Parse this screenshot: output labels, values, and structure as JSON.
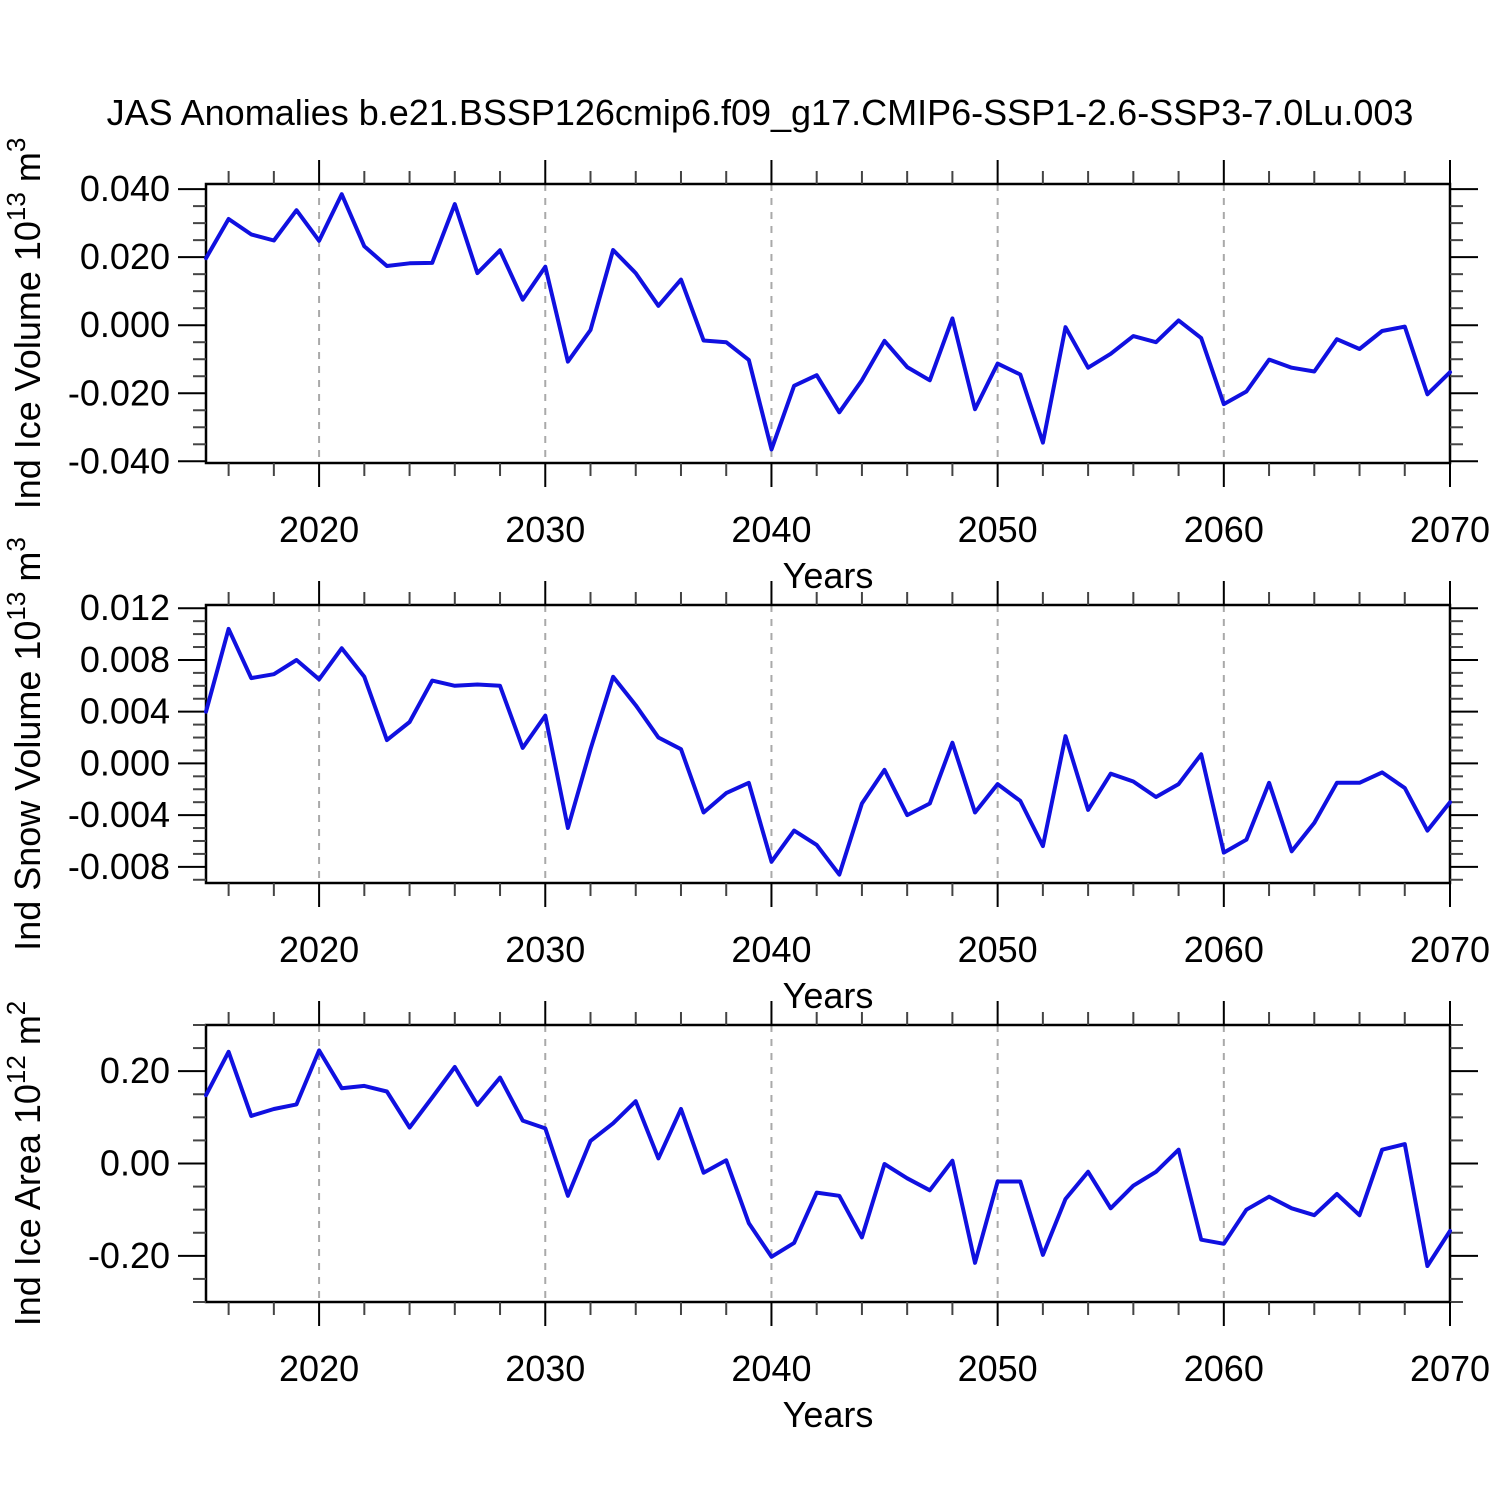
{
  "title": "JAS Anomalies b.e21.BSSP126cmip6.f09_g17.CMIP6-SSP1-2.6-SSP3-7.0Lu.003",
  "colors": {
    "line": "#1010E0",
    "axis": "#000000",
    "gridline": "#A9A9A9",
    "background": "#FFFFFF"
  },
  "chart_data": {
    "type": "line",
    "xlabel": "Years",
    "legend": "none",
    "grid": "vertical-dashed-at-decades",
    "gridline_years": [
      2020,
      2030,
      2040,
      2050,
      2060
    ],
    "x_major_ticks": [
      {
        "v": 2020,
        "label": "2020"
      },
      {
        "v": 2030,
        "label": "2030"
      },
      {
        "v": 2040,
        "label": "2040"
      },
      {
        "v": 2050,
        "label": "2050"
      },
      {
        "v": 2060,
        "label": "2060"
      },
      {
        "v": 2070,
        "label": "2070"
      }
    ],
    "x_minor_step": 2,
    "xlim": [
      2015,
      2070
    ],
    "years": [
      2015,
      2016,
      2017,
      2018,
      2019,
      2020,
      2021,
      2022,
      2023,
      2024,
      2025,
      2026,
      2027,
      2028,
      2029,
      2030,
      2031,
      2032,
      2033,
      2034,
      2035,
      2036,
      2037,
      2038,
      2039,
      2040,
      2041,
      2042,
      2043,
      2044,
      2045,
      2046,
      2047,
      2048,
      2049,
      2050,
      2051,
      2052,
      2053,
      2054,
      2055,
      2056,
      2057,
      2058,
      2059,
      2060,
      2061,
      2062,
      2063,
      2064,
      2065,
      2066,
      2067,
      2068,
      2069,
      2070
    ],
    "panels": [
      {
        "id": "ind-ice-volume",
        "ylabel_text": "Ind Ice Volume 10^13 m^3",
        "ylabel_parts": [
          {
            "t": "Ind Ice Volume 10",
            "sup": false
          },
          {
            "t": "13",
            "sup": true
          },
          {
            "t": " m",
            "sup": false
          },
          {
            "t": "3",
            "sup": true
          }
        ],
        "ylim": [
          -0.0405,
          0.0415
        ],
        "y_major_ticks": [
          {
            "v": 0.04,
            "label": "0.040"
          },
          {
            "v": 0.02,
            "label": "0.020"
          },
          {
            "v": 0.0,
            "label": "0.000"
          },
          {
            "v": -0.02,
            "label": "-0.020"
          },
          {
            "v": -0.04,
            "label": "-0.040"
          }
        ],
        "y_minor_step": 0.005,
        "values": [
          0.0197,
          0.0312,
          0.0267,
          0.0249,
          0.0338,
          0.0248,
          0.0385,
          0.0232,
          0.0174,
          0.0182,
          0.0183,
          0.0356,
          0.0153,
          0.022,
          0.0075,
          0.0172,
          -0.0107,
          -0.0014,
          0.0221,
          0.0153,
          0.0057,
          0.0134,
          -0.0045,
          -0.005,
          -0.0102,
          -0.0365,
          -0.0178,
          -0.0147,
          -0.0256,
          -0.0162,
          -0.0046,
          -0.0123,
          -0.0162,
          0.002,
          -0.0247,
          -0.0113,
          -0.0145,
          -0.0345,
          -0.0006,
          -0.0125,
          -0.0084,
          -0.0032,
          -0.005,
          0.0014,
          -0.0038,
          -0.0232,
          -0.0195,
          -0.0101,
          -0.0125,
          -0.0136,
          -0.0041,
          -0.007,
          -0.0017,
          -0.0004,
          -0.0203,
          -0.0138
        ]
      },
      {
        "id": "ind-snow-volume",
        "ylabel_text": "Ind Snow Volume 10^13 m^3",
        "ylabel_parts": [
          {
            "t": "Ind Snow Volume 10",
            "sup": false
          },
          {
            "t": "13",
            "sup": true
          },
          {
            "t": " m",
            "sup": false
          },
          {
            "t": "3",
            "sup": true
          }
        ],
        "ylim": [
          -0.00925,
          0.01225
        ],
        "y_major_ticks": [
          {
            "v": 0.012,
            "label": "0.012"
          },
          {
            "v": 0.008,
            "label": "0.008"
          },
          {
            "v": 0.004,
            "label": "0.004"
          },
          {
            "v": 0.0,
            "label": "0.000"
          },
          {
            "v": -0.004,
            "label": "-0.004"
          },
          {
            "v": -0.008,
            "label": "-0.008"
          }
        ],
        "y_minor_step": 0.001,
        "values": [
          0.004,
          0.0104,
          0.0066,
          0.0069,
          0.008,
          0.0065,
          0.0089,
          0.0067,
          0.0018,
          0.0032,
          0.0064,
          0.006,
          0.0061,
          0.006,
          0.0012,
          0.0037,
          -0.005,
          0.0011,
          0.0067,
          0.0045,
          0.002,
          0.0011,
          -0.0038,
          -0.0023,
          -0.0015,
          -0.0076,
          -0.0052,
          -0.0063,
          -0.0086,
          -0.0031,
          -0.0005,
          -0.004,
          -0.0031,
          0.0016,
          -0.0038,
          -0.0016,
          -0.0029,
          -0.0064,
          0.0021,
          -0.0036,
          -0.0008,
          -0.0014,
          -0.0026,
          -0.0016,
          0.0007,
          -0.0069,
          -0.0059,
          -0.0015,
          -0.0068,
          -0.0046,
          -0.0015,
          -0.0015,
          -0.0007,
          -0.0019,
          -0.0052,
          -0.003
        ]
      },
      {
        "id": "ind-ice-area",
        "ylabel_text": "Ind Ice Area 10^12 m^2",
        "ylabel_parts": [
          {
            "t": "Ind Ice Area 10",
            "sup": false
          },
          {
            "t": "12",
            "sup": true
          },
          {
            "t": " m",
            "sup": false
          },
          {
            "t": "2",
            "sup": true
          }
        ],
        "ylim": [
          -0.3,
          0.3
        ],
        "y_major_ticks": [
          {
            "v": 0.2,
            "label": "0.20"
          },
          {
            "v": 0.0,
            "label": "0.00"
          },
          {
            "v": -0.2,
            "label": "-0.20"
          }
        ],
        "y_minor_step": 0.05,
        "values": [
          0.148,
          0.242,
          0.103,
          0.118,
          0.128,
          0.245,
          0.163,
          0.168,
          0.156,
          0.078,
          0.143,
          0.209,
          0.127,
          0.186,
          0.093,
          0.076,
          -0.07,
          0.049,
          0.087,
          0.135,
          0.011,
          0.118,
          -0.02,
          0.007,
          -0.129,
          -0.202,
          -0.172,
          -0.063,
          -0.07,
          -0.16,
          -0.001,
          -0.032,
          -0.058,
          0.006,
          -0.215,
          -0.039,
          -0.039,
          -0.198,
          -0.077,
          -0.018,
          -0.097,
          -0.048,
          -0.018,
          0.03,
          -0.165,
          -0.174,
          -0.1,
          -0.072,
          -0.097,
          -0.112,
          -0.066,
          -0.112,
          0.03,
          0.042,
          -0.222,
          -0.146
        ]
      }
    ]
  }
}
